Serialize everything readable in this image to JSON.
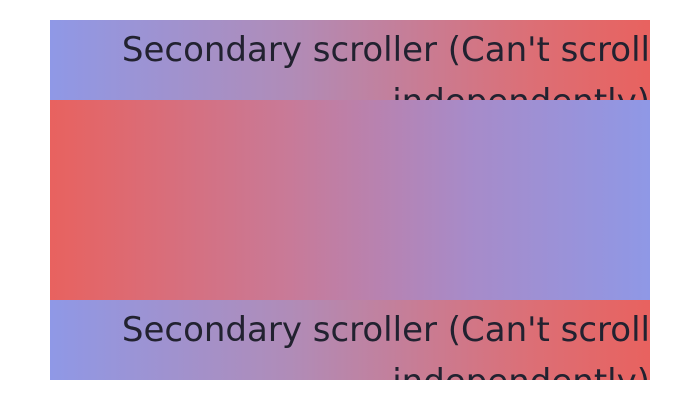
{
  "scrollers": {
    "top": {
      "label": "Secondary scroller (Can't scroll independently)"
    },
    "bottom": {
      "label": "Secondary scroller (Can't scroll independently)"
    }
  },
  "colors": {
    "blue": "#8f98e6",
    "red": "#e8625f",
    "text": "#222230"
  }
}
